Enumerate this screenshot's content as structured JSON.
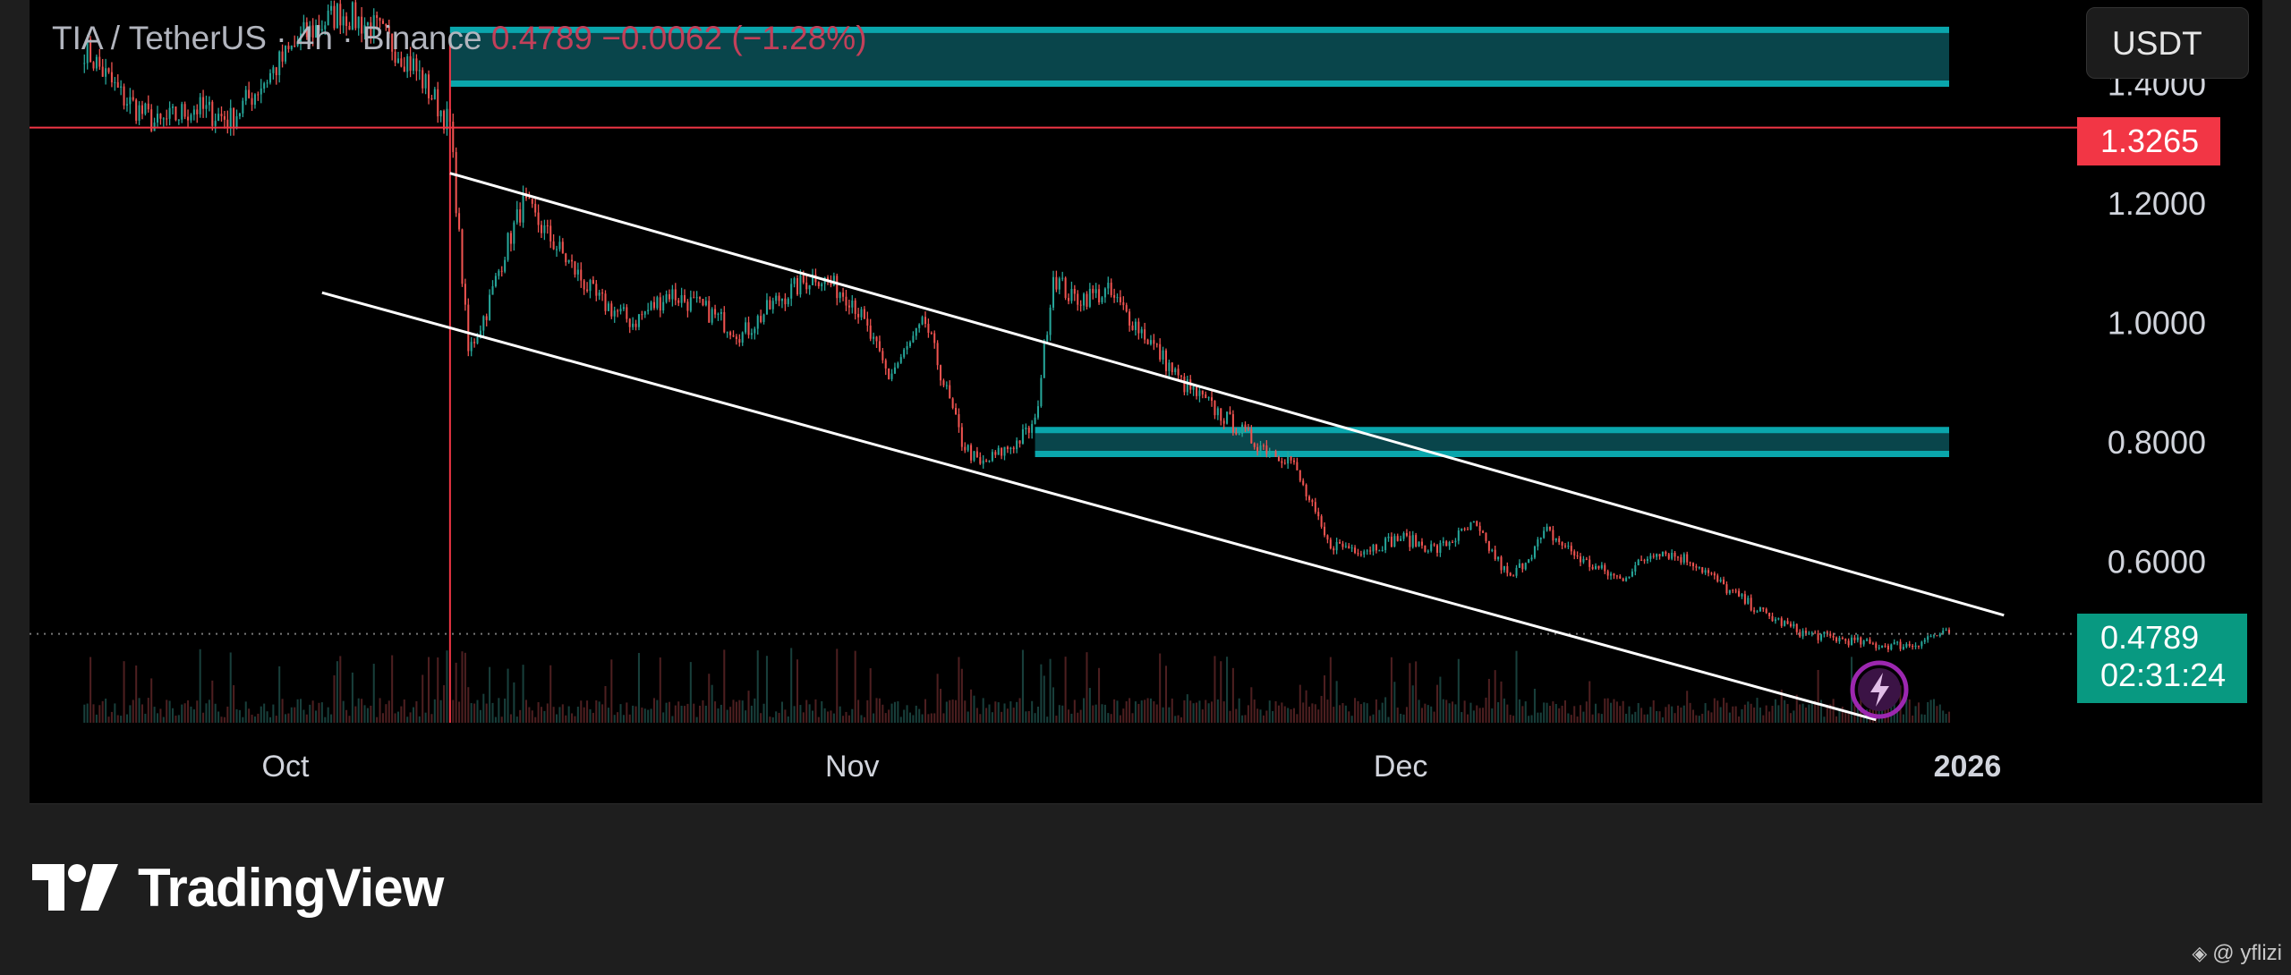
{
  "header": {
    "symbol": "TIA / TetherUS · 4h · Binance",
    "last_price": "0.4789",
    "change": "−0.0062 (−1.28%)"
  },
  "currency_button": "USDT",
  "price_tags": {
    "resistance_label": "1.3265",
    "resistance_color": "#f23645",
    "current_price": "0.4789",
    "countdown": "02:31:24",
    "current_color": "#089981"
  },
  "brand": {
    "name": "TradingView"
  },
  "watermark": {
    "author": "@ yflizi"
  },
  "colors": {
    "up": "#26a69a",
    "down": "#ef5350",
    "zone": "#0aa6ac",
    "zone_fill": "#0a4c53",
    "trendline": "#ffffff",
    "price_line": "#f23645",
    "alert_icon": "#9c27b0"
  },
  "chart_data": {
    "type": "candlestick",
    "title": "TIA / TetherUS · 4h · Binance",
    "x_ticks": [
      "Oct",
      "Nov",
      "Dec",
      "2026"
    ],
    "y_ticks": [
      "1.4000",
      "1.2000",
      "1.0000",
      "0.8000",
      "0.6000"
    ],
    "y_range": [
      0.33,
      1.54
    ],
    "x_range": [
      "2025-09-17",
      "2026-01-07"
    ],
    "series": [
      {
        "values": [
          [
            "2025-09-20",
            1.46
          ],
          [
            "2025-09-22",
            1.38
          ],
          [
            "2025-09-24",
            1.33
          ],
          [
            "2025-09-26",
            1.36
          ],
          [
            "2025-09-28",
            1.34
          ],
          [
            "2025-09-30",
            1.41
          ],
          [
            "2025-10-02",
            1.48
          ],
          [
            "2025-10-04",
            1.52
          ],
          [
            "2025-10-06",
            1.49
          ],
          [
            "2025-10-08",
            1.43
          ],
          [
            "2025-10-10",
            1.33
          ],
          [
            "2025-10-11",
            0.95
          ],
          [
            "2025-10-12",
            1.02
          ],
          [
            "2025-10-13",
            1.12
          ],
          [
            "2025-10-14",
            1.2
          ],
          [
            "2025-10-16",
            1.12
          ],
          [
            "2025-10-18",
            1.04
          ],
          [
            "2025-10-20",
            1.0
          ],
          [
            "2025-10-22",
            1.05
          ],
          [
            "2025-10-24",
            1.02
          ],
          [
            "2025-10-26",
            0.98
          ],
          [
            "2025-10-28",
            1.04
          ],
          [
            "2025-10-30",
            1.08
          ],
          [
            "2025-11-01",
            1.04
          ],
          [
            "2025-11-03",
            0.91
          ],
          [
            "2025-11-05",
            1.0
          ],
          [
            "2025-11-07",
            0.8
          ],
          [
            "2025-11-08",
            0.76
          ],
          [
            "2025-11-10",
            0.8
          ],
          [
            "2025-11-11",
            0.83
          ],
          [
            "2025-11-12",
            1.08
          ],
          [
            "2025-11-13",
            1.04
          ],
          [
            "2025-11-15",
            1.05
          ],
          [
            "2025-11-17",
            0.98
          ],
          [
            "2025-11-19",
            0.9
          ],
          [
            "2025-11-21",
            0.85
          ],
          [
            "2025-11-23",
            0.8
          ],
          [
            "2025-11-25",
            0.77
          ],
          [
            "2025-11-27",
            0.63
          ],
          [
            "2025-11-29",
            0.62
          ],
          [
            "2025-12-01",
            0.64
          ],
          [
            "2025-12-03",
            0.62
          ],
          [
            "2025-12-05",
            0.66
          ],
          [
            "2025-12-07",
            0.57
          ],
          [
            "2025-12-09",
            0.65
          ],
          [
            "2025-12-11",
            0.6
          ],
          [
            "2025-12-13",
            0.57
          ],
          [
            "2025-12-15",
            0.62
          ],
          [
            "2025-12-17",
            0.6
          ],
          [
            "2025-12-19",
            0.55
          ],
          [
            "2025-12-21",
            0.51
          ],
          [
            "2025-12-23",
            0.48
          ],
          [
            "2025-12-25",
            0.47
          ],
          [
            "2025-12-27",
            0.46
          ],
          [
            "2025-12-29",
            0.46
          ],
          [
            "2025-12-30",
            0.475
          ],
          [
            "2025-12-31",
            0.4789
          ]
        ]
      }
    ],
    "horizontal_line": {
      "price": 1.3265
    },
    "vertical_line": {
      "date": "2025-10-10"
    },
    "current_price_line": {
      "price": 0.4789
    },
    "zones": [
      {
        "from": 1.4,
        "to": 1.49,
        "start": "2025-10-10",
        "end": "2025-12-31"
      },
      {
        "from": 0.78,
        "to": 0.82,
        "start": "2025-11-11",
        "end": "2025-12-31"
      }
    ],
    "trendlines": [
      {
        "p1": [
          "2025-10-10",
          1.25
        ],
        "p2": [
          "2026-01-03",
          0.51
        ]
      },
      {
        "p1": [
          "2025-10-03",
          1.05
        ],
        "p2": [
          "2025-12-27",
          0.335
        ]
      }
    ],
    "legend": "none",
    "grid": false
  }
}
